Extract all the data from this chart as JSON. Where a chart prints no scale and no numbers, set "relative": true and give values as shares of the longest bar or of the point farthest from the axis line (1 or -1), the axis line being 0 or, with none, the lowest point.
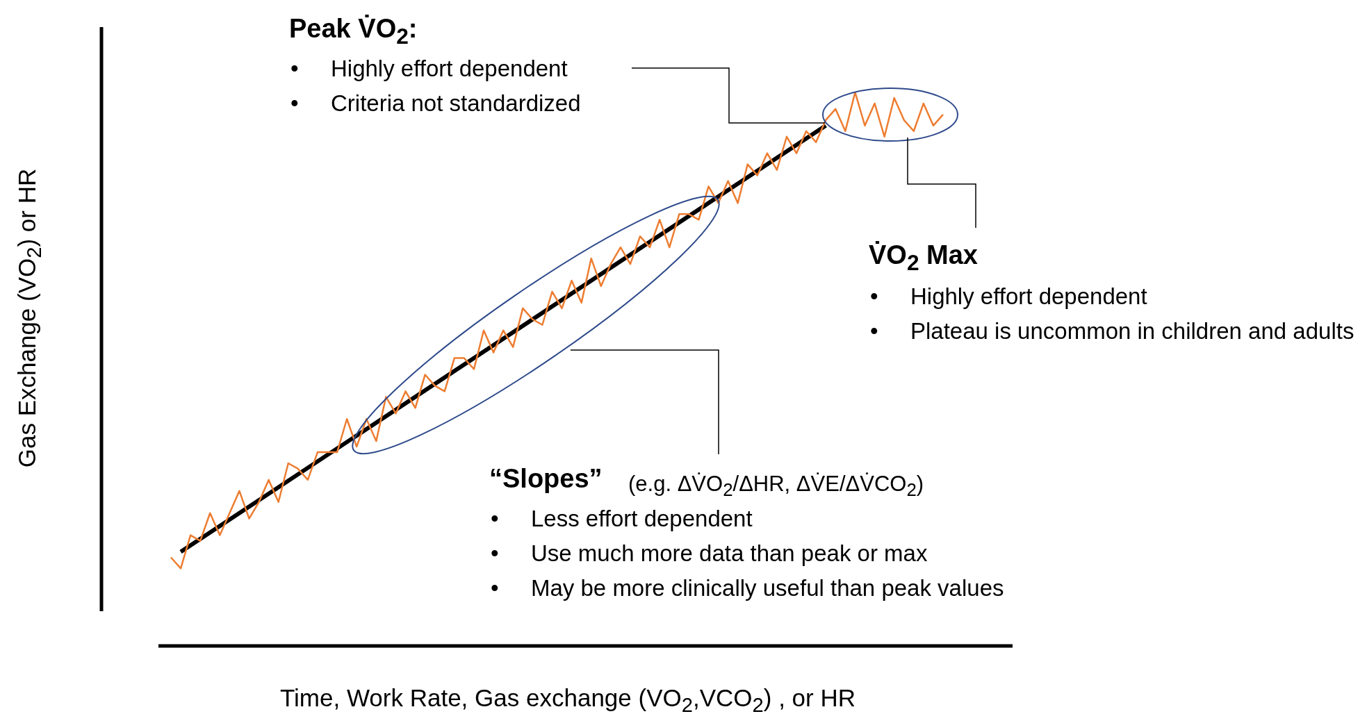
{
  "chart_data": {
    "type": "line",
    "relative": true,
    "legend": false,
    "marker": "none",
    "xlabel": "Time, Work Rate, Gas exchange (VO$_{2}$,VCO$_{2}$) , or HR",
    "ylabel": "Gas Exchange (VO$_{2}$) or HR",
    "categories": [
      null,
      null,
      null,
      null,
      null,
      null,
      null,
      null,
      null,
      null,
      null,
      null,
      null,
      null,
      null,
      null,
      null,
      null,
      null,
      null,
      null,
      null,
      null,
      null,
      null,
      null,
      null,
      null,
      null,
      null,
      null,
      null,
      null,
      null,
      null,
      null,
      null,
      null,
      null,
      null,
      null,
      null,
      null,
      null,
      null,
      null,
      null,
      null,
      null,
      null,
      null,
      null,
      null,
      null,
      null,
      null,
      null,
      null,
      null,
      null,
      null,
      null,
      null,
      null,
      null,
      null,
      null,
      null,
      null,
      null,
      null,
      null,
      null,
      null,
      null,
      null,
      null,
      null,
      null,
      null
    ],
    "series": [
      {
        "color": "#ed7d31",
        "values": [
          0.16,
          0.14,
          0.2,
          0.19,
          0.24,
          0.2,
          0.24,
          0.28,
          0.23,
          0.26,
          0.3,
          0.26,
          0.33,
          0.32,
          0.3,
          0.35,
          0.35,
          0.35,
          0.41,
          0.36,
          0.41,
          0.37,
          0.45,
          0.42,
          0.46,
          0.43,
          0.49,
          0.47,
          0.46,
          0.52,
          0.52,
          0.5,
          0.57,
          0.53,
          0.57,
          0.54,
          0.61,
          0.59,
          0.58,
          0.64,
          0.61,
          0.66,
          0.62,
          0.7,
          0.65,
          0.69,
          0.72,
          0.69,
          0.74,
          0.72,
          0.77,
          0.72,
          0.78,
          0.78,
          0.77,
          0.83,
          0.8,
          0.84,
          0.8,
          0.87,
          0.85,
          0.89,
          0.86,
          0.92,
          0.89,
          0.93,
          0.91,
          0.95,
          0.97,
          0.93,
          1.0,
          0.94,
          0.98,
          0.92,
          0.99,
          0.95,
          0.93,
          0.98,
          0.94,
          0.96
        ]
      },
      {
        "color": "#000000",
        "values": [
          null,
          0.17,
          null,
          null,
          null,
          null,
          null,
          null,
          null,
          null,
          null,
          null,
          null,
          null,
          null,
          null,
          null,
          null,
          null,
          null,
          null,
          null,
          null,
          null,
          null,
          null,
          null,
          null,
          null,
          null,
          null,
          null,
          null,
          null,
          null,
          null,
          null,
          null,
          null,
          null,
          null,
          null,
          null,
          null,
          null,
          null,
          null,
          null,
          null,
          null,
          null,
          null,
          null,
          null,
          null,
          null,
          null,
          null,
          null,
          null,
          null,
          null,
          null,
          null,
          null,
          null,
          null,
          0.94,
          null,
          null,
          null,
          null,
          null,
          null,
          null,
          null,
          null,
          null,
          null,
          null
        ]
      }
    ],
    "annotations": [
      "Peak V̇O$_{2}$:",
      "•\tHighly effort dependent",
      "•\tCriteria not standardized",
      "V̇O$_{2}$ Max",
      "•\tHighly effort dependent",
      "•\tPlateau is uncommon in children and adults",
      "“Slopes”",
      "(e.g. ΔV̇O$_{2}$/ΔHR, ΔV̇E/ΔV̇CO$_{2}$)",
      "•\tLess effort dependent",
      "•\tUse much more data than peak or max",
      "•\tMay be more clinically useful than peak values"
    ]
  }
}
